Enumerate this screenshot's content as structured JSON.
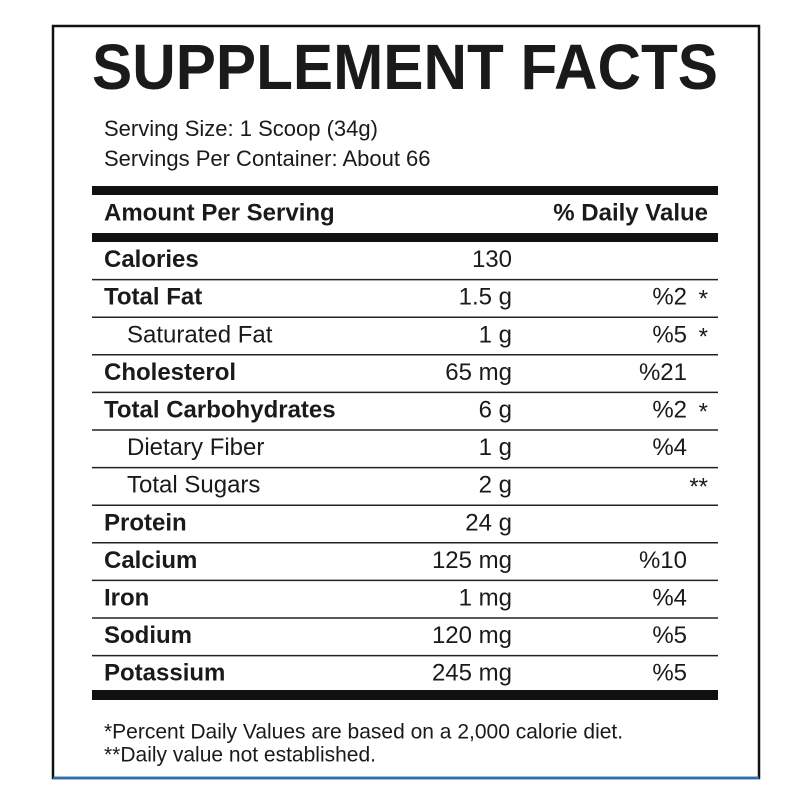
{
  "title": "SUPPLEMENT FACTS",
  "serving": [
    "Serving Size: 1 Scoop (34g)",
    "Servings Per Container: About 66"
  ],
  "header": {
    "amount": "Amount Per Serving",
    "daily_value": "% Daily Value"
  },
  "rows": [
    {
      "name": "Calories",
      "amount": "130"
    },
    {
      "name": "Total Fat",
      "amount": "1.5 g",
      "dv": "%2",
      "note": "*"
    },
    {
      "name": "Saturated Fat",
      "amount": "1 g",
      "dv": "%5",
      "note": "*",
      "indent": true
    },
    {
      "name": "Cholesterol",
      "amount": "65 mg",
      "dv": "%21"
    },
    {
      "name": "Total Carbohydrates",
      "amount": "6 g",
      "dv": "%2",
      "note": "*"
    },
    {
      "name": "Dietary Fiber",
      "amount": "1 g",
      "dv": "%4",
      "indent": true
    },
    {
      "name": "Total Sugars",
      "amount": "2 g",
      "note": "**",
      "indent": true
    },
    {
      "name": "Protein",
      "amount": "24 g"
    },
    {
      "name": "Calcium",
      "amount": "125 mg",
      "dv": "%10"
    },
    {
      "name": "Iron",
      "amount": "1 mg",
      "dv": "%4"
    },
    {
      "name": "Sodium",
      "amount": "120 mg",
      "dv": "%5"
    },
    {
      "name": "Potassium",
      "amount": "245 mg",
      "dv": "%5"
    }
  ],
  "footnotes": [
    "*Percent Daily Values are based on a 2,000 calorie diet.",
    "**Daily value not established."
  ]
}
